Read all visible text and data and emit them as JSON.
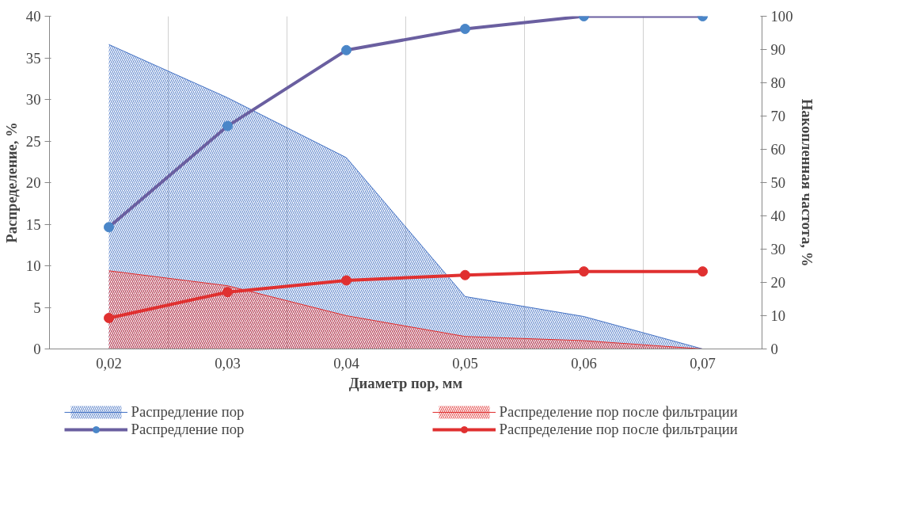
{
  "chart_data": {
    "type": "line",
    "xlabel": "Диаметр пор, мм",
    "ylabel": "Распределение, %",
    "y2label": "Накопленная частота, %",
    "categories": [
      "0,02",
      "0,03",
      "0,04",
      "0,05",
      "0,06",
      "0,07"
    ],
    "ylim": [
      0,
      40
    ],
    "yticks": [
      0,
      5,
      10,
      15,
      20,
      25,
      30,
      35,
      40
    ],
    "y2lim": [
      0,
      100
    ],
    "y2ticks": [
      0,
      10,
      20,
      30,
      40,
      50,
      60,
      70,
      80,
      90,
      100
    ],
    "grid": "x",
    "legend": "bottom",
    "series": [
      {
        "name": "Распредление пор",
        "type": "area",
        "color": "#4472c4",
        "values": [
          36.6,
          30.2,
          23.0,
          6.3,
          3.9,
          0
        ]
      },
      {
        "name": "Распределение пор после фильтрации",
        "type": "area",
        "color": "#e03030",
        "values": [
          9.4,
          7.6,
          4.0,
          1.5,
          1.0,
          0
        ]
      },
      {
        "name": "Распредление пор",
        "axis": "y2",
        "marker": "circle",
        "color": "#6a5fa0",
        "values": [
          36.6,
          67,
          89.8,
          96.2,
          100,
          100
        ]
      },
      {
        "name": "Распределение пор после фильтрации",
        "axis": "y2",
        "marker": "circle",
        "color": "#e03030",
        "values": [
          9.3,
          17.1,
          20.6,
          22.2,
          23.3,
          23.3
        ]
      }
    ]
  }
}
